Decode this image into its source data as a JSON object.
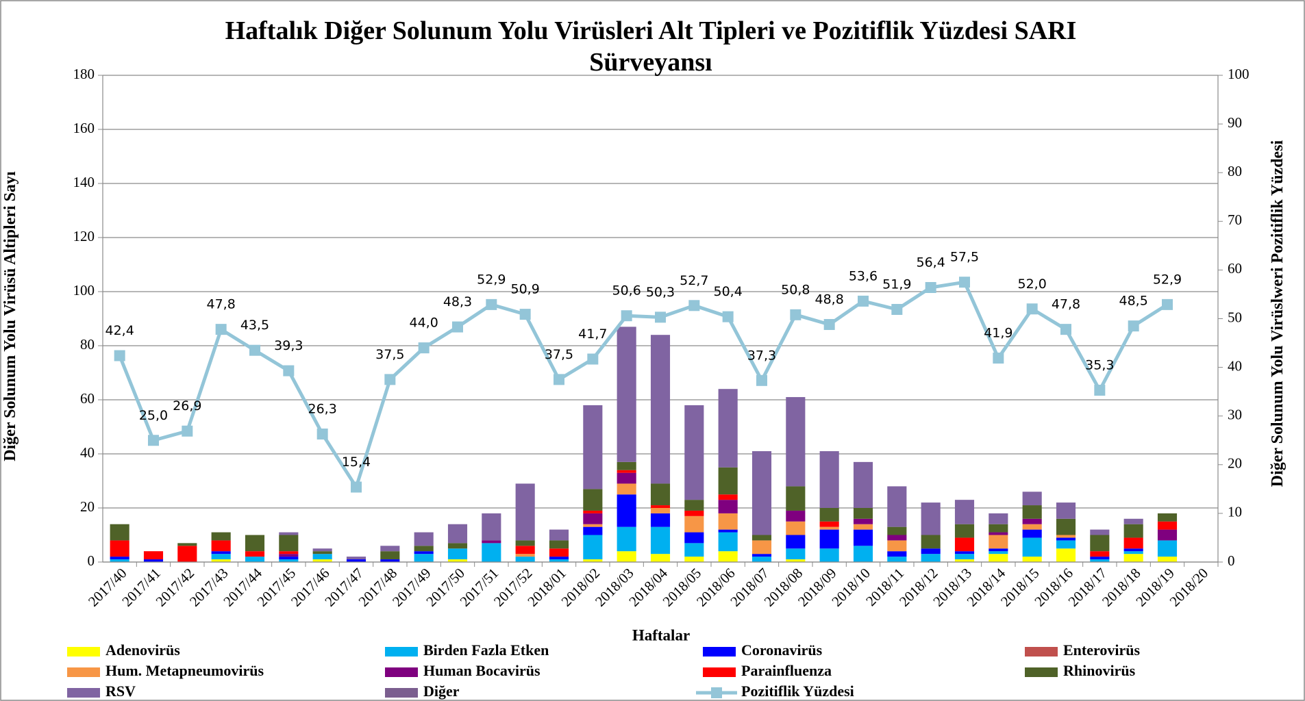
{
  "chart_data": {
    "type": "bar",
    "stacked": true,
    "title": "Haftalık Diğer Solunum Yolu Virüsleri Alt Tipleri ve Pozitiflik Yüzdesi SARI Sürveyansı",
    "x_label": "Haftalar",
    "y_label": "Diğer Solunum Yolu Virüsü Altipleri Sayı",
    "y2_label": "Diğer Solunum Yolu Virüslweri Pozitiflik Yüzdesi",
    "categories": [
      "2017/40",
      "2017/41",
      "2017/42",
      "2017/43",
      "2017/44",
      "2017/45",
      "2017/46",
      "2017/47",
      "2017/48",
      "2017/49",
      "2017/50",
      "2017/51",
      "2017/52",
      "2018/01",
      "2018/02",
      "2018/03",
      "2018/04",
      "2018/05",
      "2018/06",
      "2018/07",
      "2018/08",
      "2018/09",
      "2018/10",
      "2018/11",
      "2018/12",
      "2018/13",
      "2018/14",
      "2018/15",
      "2018/16",
      "2018/17",
      "2018/18",
      "2018/19",
      "2018/20"
    ],
    "ylim": [
      0,
      180
    ],
    "yticks": [
      0,
      20,
      40,
      60,
      80,
      100,
      120,
      140,
      160,
      180
    ],
    "y2lim": [
      0,
      100
    ],
    "y2ticks": [
      0,
      10,
      20,
      30,
      40,
      50,
      60,
      70,
      80,
      90,
      100
    ],
    "grid": true,
    "series": [
      {
        "name": "Adenovirüs",
        "color": "#ffff00",
        "values": [
          0,
          0,
          0,
          1,
          0,
          0,
          1,
          0,
          0,
          0,
          1,
          0,
          0,
          0,
          1,
          4,
          3,
          2,
          4,
          0,
          1,
          0,
          0,
          0,
          0,
          1,
          3,
          2,
          5,
          0,
          3,
          2,
          0
        ]
      },
      {
        "name": "Birden Fazla Etken",
        "color": "#00b0f0",
        "values": [
          1,
          0,
          0,
          2,
          2,
          1,
          2,
          0,
          0,
          3,
          4,
          7,
          2,
          1,
          9,
          9,
          10,
          5,
          7,
          2,
          4,
          5,
          6,
          2,
          3,
          2,
          1,
          7,
          3,
          1,
          1,
          6,
          0
        ]
      },
      {
        "name": "Coronavirüs",
        "color": "#0000ff",
        "values": [
          1,
          1,
          0,
          1,
          0,
          1,
          0,
          1,
          1,
          1,
          0,
          0,
          0,
          1,
          3,
          12,
          5,
          4,
          1,
          1,
          5,
          7,
          6,
          2,
          2,
          1,
          1,
          3,
          1,
          1,
          1,
          0,
          0
        ]
      },
      {
        "name": "Enterovirüs",
        "color": "#c0504d",
        "values": [
          0,
          0,
          0,
          0,
          0,
          0,
          0,
          0,
          0,
          0,
          0,
          0,
          0,
          0,
          0,
          0,
          0,
          0,
          0,
          0,
          0,
          0,
          0,
          0,
          0,
          0,
          0,
          0,
          0,
          0,
          0,
          0,
          0
        ]
      },
      {
        "name": "Hum. Metapneumovirüs",
        "color": "#f79646",
        "values": [
          0,
          0,
          0,
          0,
          0,
          0,
          0,
          0,
          0,
          0,
          0,
          0,
          1,
          0,
          1,
          4,
          2,
          6,
          6,
          5,
          5,
          1,
          2,
          4,
          0,
          0,
          5,
          2,
          1,
          0,
          0,
          0,
          0
        ]
      },
      {
        "name": "Human Bocavirüs",
        "color": "#7f007f",
        "values": [
          0,
          0,
          0,
          0,
          0,
          1,
          0,
          0,
          0,
          0,
          0,
          1,
          0,
          0,
          4,
          4,
          0,
          0,
          5,
          0,
          4,
          0,
          2,
          2,
          0,
          0,
          1,
          2,
          0,
          0,
          0,
          4,
          0
        ]
      },
      {
        "name": "Parainfluenza",
        "color": "#ff0000",
        "values": [
          6,
          3,
          6,
          4,
          2,
          1,
          0,
          0,
          0,
          0,
          0,
          0,
          3,
          3,
          1,
          1,
          1,
          2,
          2,
          0,
          0,
          2,
          0,
          0,
          0,
          5,
          0,
          0,
          0,
          2,
          4,
          3,
          0
        ]
      },
      {
        "name": "Rhinovirüs",
        "color": "#4f6228",
        "values": [
          6,
          0,
          1,
          3,
          6,
          6,
          1,
          0,
          3,
          2,
          2,
          0,
          2,
          3,
          8,
          3,
          8,
          4,
          10,
          2,
          9,
          5,
          4,
          3,
          5,
          5,
          3,
          5,
          6,
          6,
          5,
          3,
          0
        ]
      },
      {
        "name": "RSV",
        "color": "#8064a2",
        "values": [
          0,
          0,
          0,
          0,
          0,
          1,
          1,
          1,
          2,
          5,
          7,
          10,
          21,
          4,
          31,
          50,
          55,
          35,
          29,
          31,
          33,
          21,
          17,
          15,
          12,
          9,
          4,
          5,
          6,
          2,
          2,
          0,
          0
        ]
      },
      {
        "name": "Diğer",
        "color": "#7b5e8f",
        "values": [
          0,
          0,
          0,
          0,
          0,
          0,
          0,
          0,
          0,
          0,
          0,
          0,
          0,
          0,
          0,
          0,
          0,
          0,
          0,
          0,
          0,
          0,
          0,
          0,
          0,
          0,
          0,
          0,
          0,
          0,
          0,
          0,
          0
        ]
      },
      {
        "name": "Pozitiflik Yüzdesi",
        "color": "#93c5d8",
        "axis": "y2",
        "values": [
          42.4,
          25.0,
          26.9,
          47.8,
          43.5,
          39.3,
          26.3,
          15.4,
          37.5,
          44.0,
          48.3,
          52.9,
          50.9,
          37.5,
          41.7,
          50.6,
          50.3,
          52.7,
          50.4,
          37.3,
          50.8,
          48.8,
          53.6,
          51.9,
          56.4,
          57.5,
          41.9,
          52.0,
          47.8,
          35.3,
          48.5,
          52.9,
          null
        ],
        "value_labels": [
          "42,4",
          "25,0",
          "26,9",
          "47,8",
          "43,5",
          "39,3",
          "26,3",
          "15,4",
          "37,5",
          "44,0",
          "48,3",
          "52,9",
          "50,9",
          "37,5",
          "41,7",
          "50,6",
          "50,3",
          "52,7",
          "50,4",
          "37,3",
          "50,8",
          "48,8",
          "53,6",
          "51,9",
          "56,4",
          "57,5",
          "41,9",
          "52,0",
          "47,8",
          "35,3",
          "48,5",
          "52,9",
          null
        ]
      }
    ]
  }
}
